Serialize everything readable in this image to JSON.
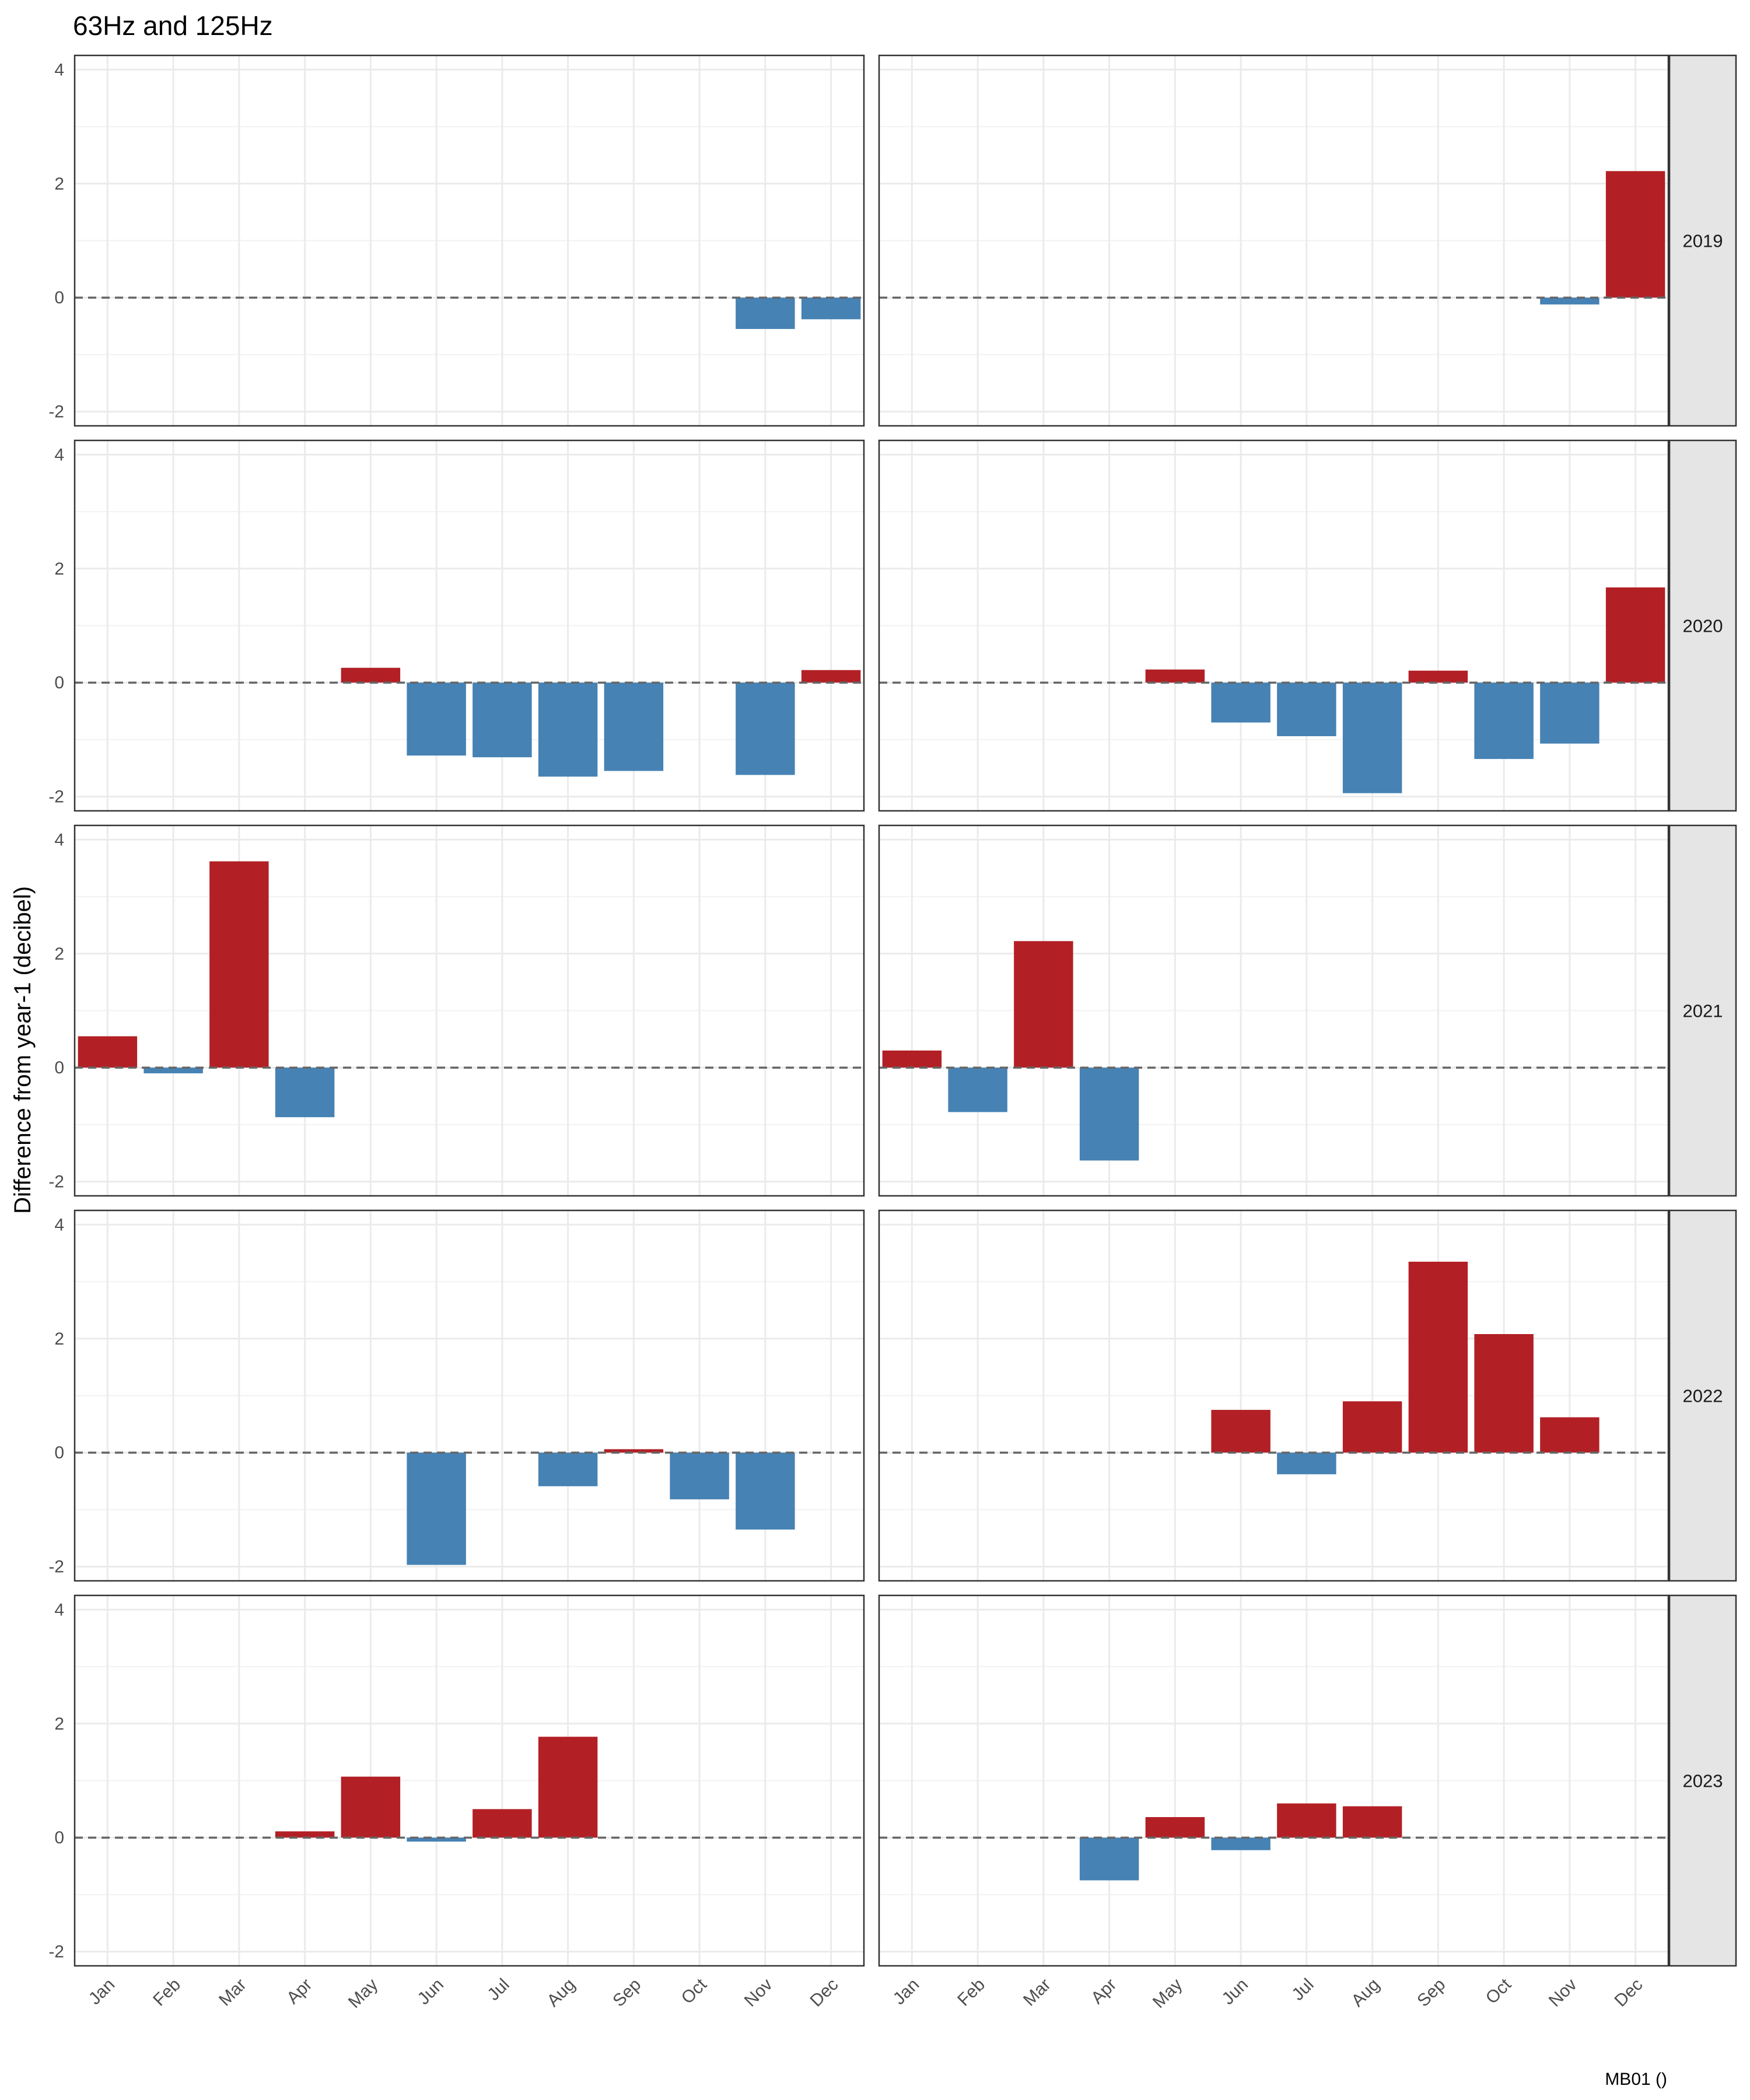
{
  "chart_data": {
    "type": "bar",
    "title": "63Hz and 125Hz",
    "ylabel": "Difference from year-1 (decibel)",
    "xlabel": "",
    "caption": "MB01 ()",
    "categories": [
      "Jan",
      "Feb",
      "Mar",
      "Apr",
      "May",
      "Jun",
      "Jul",
      "Aug",
      "Sep",
      "Oct",
      "Nov",
      "Dec"
    ],
    "ylim": [
      -2.25,
      4.25
    ],
    "yticks": [
      -2,
      0,
      2,
      4
    ],
    "grid": true,
    "columns": [
      "63Hz",
      "125Hz"
    ],
    "colors": {
      "positive": "#B22025",
      "negative": "#4682B4",
      "zero_line": "#666666",
      "strip": "#E5E5E5"
    },
    "facets": [
      {
        "year": "2019",
        "panels": [
          [
            null,
            null,
            null,
            null,
            null,
            null,
            null,
            null,
            null,
            null,
            -0.55,
            -0.38
          ],
          [
            null,
            null,
            null,
            null,
            null,
            null,
            null,
            null,
            null,
            null,
            -0.12,
            2.22
          ]
        ]
      },
      {
        "year": "2020",
        "panels": [
          [
            null,
            null,
            null,
            null,
            0.26,
            -1.28,
            -1.31,
            -1.65,
            -1.55,
            null,
            -1.62,
            0.22
          ],
          [
            null,
            null,
            null,
            null,
            0.23,
            -0.7,
            -0.94,
            -1.94,
            0.21,
            -1.34,
            -1.07,
            1.67
          ]
        ]
      },
      {
        "year": "2021",
        "panels": [
          [
            0.55,
            -0.1,
            3.62,
            -0.87,
            null,
            null,
            null,
            null,
            null,
            null,
            null,
            null
          ],
          [
            0.3,
            -0.78,
            2.22,
            -1.63,
            null,
            null,
            null,
            null,
            null,
            null,
            null,
            null
          ]
        ]
      },
      {
        "year": "2022",
        "panels": [
          [
            null,
            null,
            null,
            null,
            null,
            -1.97,
            null,
            -0.59,
            0.06,
            -0.82,
            -1.35,
            null
          ],
          [
            null,
            null,
            null,
            null,
            null,
            0.75,
            -0.38,
            0.9,
            3.35,
            2.08,
            0.62,
            null
          ]
        ]
      },
      {
        "year": "2023",
        "panels": [
          [
            null,
            null,
            null,
            0.11,
            1.07,
            -0.07,
            0.5,
            1.77,
            null,
            null,
            null,
            null
          ],
          [
            null,
            null,
            null,
            -0.75,
            0.36,
            -0.22,
            0.6,
            0.55,
            null,
            null,
            null,
            null
          ]
        ]
      }
    ]
  }
}
